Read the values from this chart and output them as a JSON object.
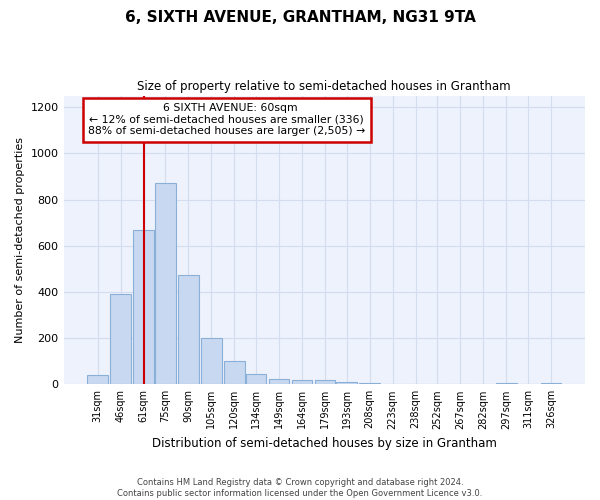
{
  "title": "6, SIXTH AVENUE, GRANTHAM, NG31 9TA",
  "subtitle": "Size of property relative to semi-detached houses in Grantham",
  "xlabel": "Distribution of semi-detached houses by size in Grantham",
  "ylabel": "Number of semi-detached properties",
  "footer_line1": "Contains HM Land Registry data © Crown copyright and database right 2024.",
  "footer_line2": "Contains public sector information licensed under the Open Government Licence v3.0.",
  "annotation_title": "6 SIXTH AVENUE: 60sqm",
  "annotation_line1": "← 12% of semi-detached houses are smaller (336)",
  "annotation_line2": "88% of semi-detached houses are larger (2,505) →",
  "bar_color": "#c8d8f0",
  "bar_edge_color": "#8ab0d8",
  "red_line_color": "#cc0000",
  "annotation_box_color": "#ffffff",
  "annotation_box_edge": "#cc0000",
  "categories": [
    31,
    46,
    61,
    75,
    90,
    105,
    120,
    134,
    149,
    164,
    179,
    193,
    208,
    223,
    238,
    252,
    267,
    282,
    297,
    311,
    326
  ],
  "bar_heights": [
    40,
    390,
    670,
    870,
    475,
    200,
    100,
    45,
    25,
    20,
    20,
    8,
    5,
    3,
    3,
    3,
    0,
    0,
    5,
    0,
    5
  ],
  "ylim": [
    0,
    1250
  ],
  "yticks": [
    0,
    200,
    400,
    600,
    800,
    1000,
    1200
  ],
  "bar_width": 13.5,
  "grid_color": "#d4ddf0",
  "background_color": "#ffffff",
  "plot_background": "#eef2fc"
}
